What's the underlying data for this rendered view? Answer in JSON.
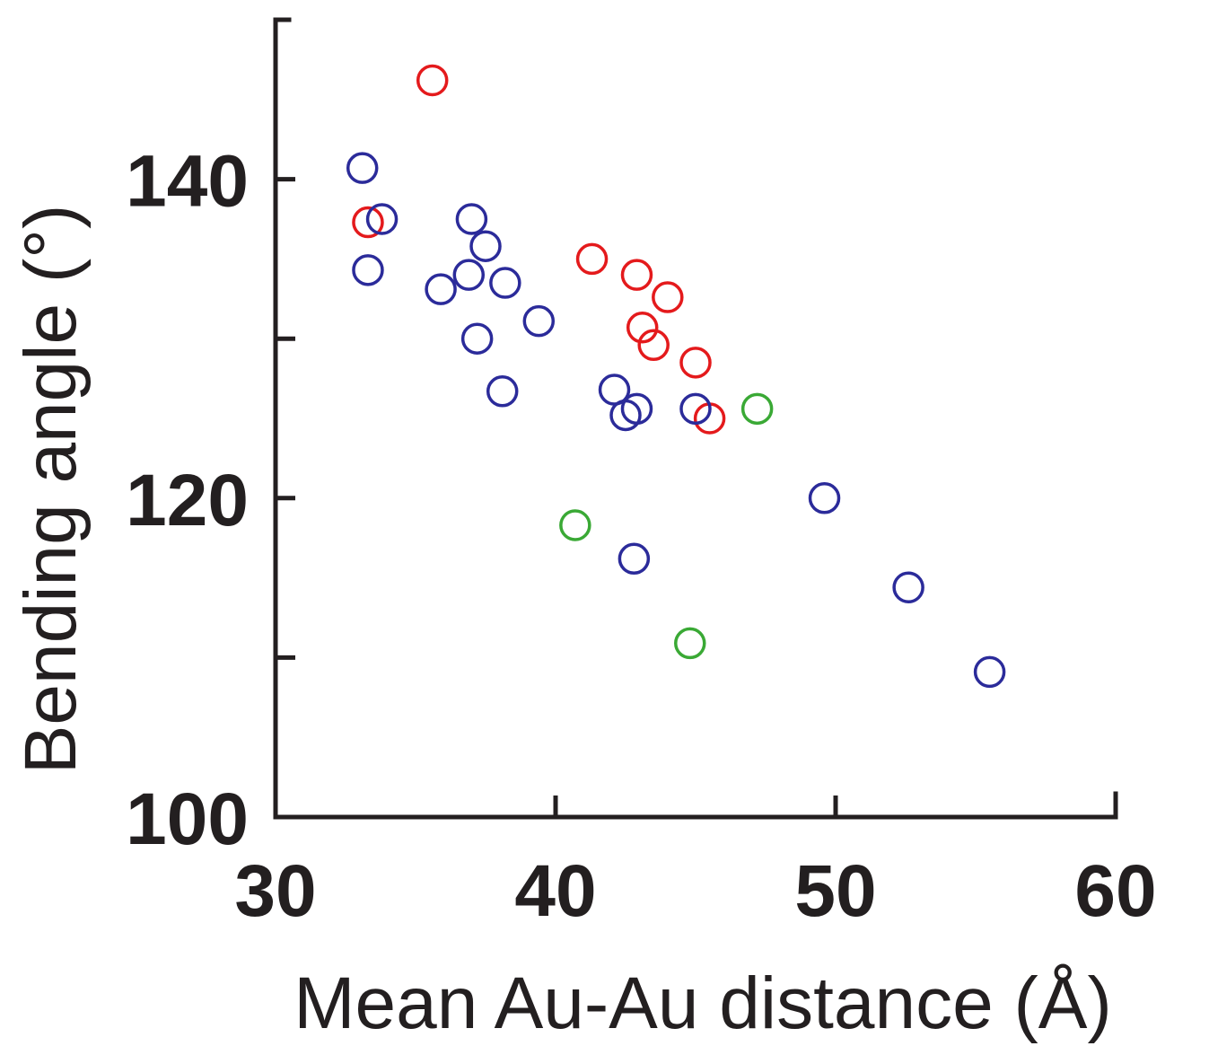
{
  "chart_data": {
    "type": "scatter",
    "xlabel": "Mean Au-Au distance (Å)",
    "ylabel": "Bending angle (°)",
    "xlim": [
      30,
      60
    ],
    "ylim": [
      100,
      150
    ],
    "x_ticks": [
      30,
      40,
      50,
      60
    ],
    "x_tick_labels": [
      "30",
      "40",
      "50",
      "60"
    ],
    "y_ticks": [
      100,
      110,
      120,
      130,
      140
    ],
    "y_tick_labels": [
      "100",
      "",
      "120",
      "",
      "140"
    ],
    "grid": false,
    "legend": "none",
    "marker": "open-circle",
    "series": [
      {
        "color": "#e41a1c",
        "points": [
          [
            35.6,
            146.2
          ],
          [
            33.3,
            137.3
          ],
          [
            41.3,
            135.0
          ],
          [
            42.9,
            134.0
          ],
          [
            44.0,
            132.6
          ],
          [
            43.1,
            130.7
          ],
          [
            43.5,
            129.6
          ],
          [
            45.0,
            128.5
          ],
          [
            45.5,
            125.0
          ]
        ]
      },
      {
        "color": "#2b2b9a",
        "points": [
          [
            33.1,
            140.7
          ],
          [
            33.8,
            137.5
          ],
          [
            33.3,
            134.3
          ],
          [
            37.0,
            137.5
          ],
          [
            37.5,
            135.8
          ],
          [
            36.9,
            134.0
          ],
          [
            35.9,
            133.1
          ],
          [
            38.2,
            133.5
          ],
          [
            39.4,
            131.1
          ],
          [
            37.2,
            130.0
          ],
          [
            38.1,
            126.7
          ],
          [
            42.1,
            126.8
          ],
          [
            42.9,
            125.6
          ],
          [
            42.5,
            125.2
          ],
          [
            45.0,
            125.6
          ],
          [
            49.6,
            120.0
          ],
          [
            42.8,
            116.2
          ],
          [
            52.6,
            114.4
          ],
          [
            55.5,
            109.1
          ]
        ]
      },
      {
        "color": "#3aa935",
        "points": [
          [
            47.2,
            125.6
          ],
          [
            40.7,
            118.3
          ],
          [
            44.8,
            110.9
          ]
        ]
      }
    ]
  }
}
